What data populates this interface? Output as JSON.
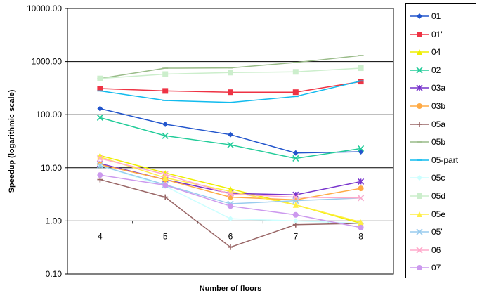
{
  "chart_data": {
    "type": "line",
    "title": "",
    "xlabel": "Number of floors",
    "ylabel": "Speedup (logarithmic scale)",
    "y_scale": "log",
    "ylim": [
      0.1,
      10000
    ],
    "y_tick_labels": [
      "0.10",
      "1.00",
      "10.00",
      "100.00",
      "1000.00",
      "10000.00"
    ],
    "x": [
      4,
      5,
      6,
      7,
      8
    ],
    "x_tick_labels": [
      "4",
      "5",
      "6",
      "7",
      "8"
    ],
    "grid": "horizontal",
    "legend_position": "right",
    "series": [
      {
        "name": "01",
        "color": "#2255cc",
        "marker": "diamond",
        "values": [
          130,
          66,
          42,
          19,
          20
        ]
      },
      {
        "name": "01'",
        "color": "#ee3344",
        "marker": "square",
        "values": [
          310,
          280,
          265,
          265,
          420
        ]
      },
      {
        "name": "04",
        "color": "#eeee00",
        "marker": "triangle",
        "values": [
          17,
          8,
          4,
          2,
          0.9
        ]
      },
      {
        "name": "02",
        "color": "#22cc99",
        "marker": "x",
        "values": [
          88,
          40,
          27,
          15,
          23
        ]
      },
      {
        "name": "03a",
        "color": "#7733cc",
        "marker": "star",
        "values": [
          12,
          6,
          3.3,
          3.1,
          5.5
        ]
      },
      {
        "name": "03b",
        "color": "#ffaa44",
        "marker": "circle",
        "values": [
          11.5,
          6,
          2.8,
          2.5,
          4.1
        ]
      },
      {
        "name": "05a",
        "color": "#996666",
        "marker": "plus",
        "values": [
          6,
          2.8,
          0.32,
          0.85,
          0.9
        ]
      },
      {
        "name": "05b",
        "color": "#99bb88",
        "marker": "dash",
        "values": [
          480,
          750,
          760,
          960,
          1300
        ]
      },
      {
        "name": "05-part",
        "color": "#11bbee",
        "marker": "dash",
        "values": [
          280,
          185,
          170,
          220,
          430
        ]
      },
      {
        "name": "05c",
        "color": "#ccffff",
        "marker": "diamond",
        "values": [
          11,
          4.5,
          1.1,
          1.0,
          0.9
        ]
      },
      {
        "name": "05d",
        "color": "#cceecc",
        "marker": "square",
        "values": [
          480,
          580,
          620,
          640,
          750
        ]
      },
      {
        "name": "05e",
        "color": "#ffee44",
        "marker": "triangle",
        "values": [
          16,
          6.5,
          3.6,
          2.0,
          0.95
        ]
      },
      {
        "name": "05'",
        "color": "#99ccee",
        "marker": "x",
        "values": [
          11,
          4.8,
          2.1,
          2.4,
          2.7
        ]
      },
      {
        "name": "06",
        "color": "#ffaacc",
        "marker": "x",
        "values": [
          15,
          7.5,
          3.2,
          2.8,
          2.7
        ]
      },
      {
        "name": "07",
        "color": "#cc99ee",
        "marker": "circle",
        "values": [
          7.3,
          4.7,
          1.9,
          1.3,
          0.75
        ]
      }
    ]
  }
}
